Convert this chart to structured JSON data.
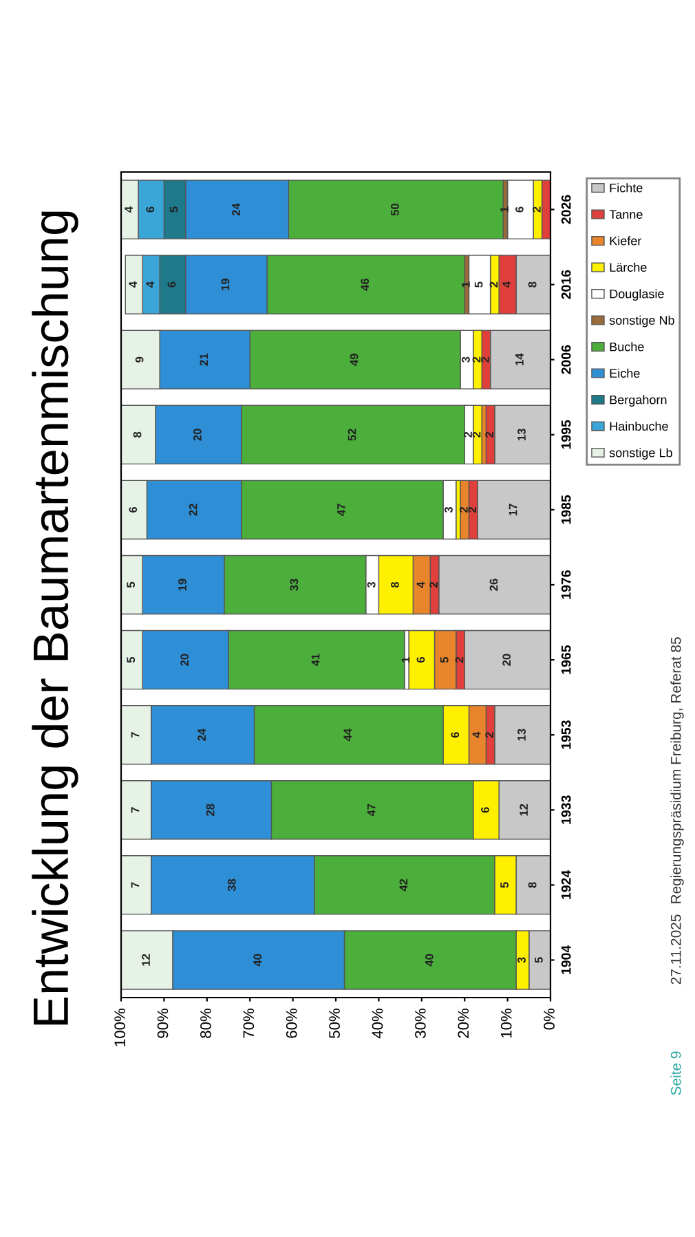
{
  "chart_data": {
    "type": "bar",
    "orientation": "horizontal",
    "stacked": true,
    "title": "Entwicklung der Baumartenmischung",
    "categories": [
      "2026",
      "2016",
      "2006",
      "1995",
      "1985",
      "1976",
      "1965",
      "1953",
      "1933",
      "1924",
      "1904"
    ],
    "xlim": [
      100,
      0
    ],
    "xticks": [
      {
        "value": 100,
        "label": "100%"
      },
      {
        "value": 90,
        "label": "90%"
      },
      {
        "value": 80,
        "label": "80%"
      },
      {
        "value": 70,
        "label": "70%"
      },
      {
        "value": 60,
        "label": "60%"
      },
      {
        "value": 50,
        "label": "50%"
      },
      {
        "value": 40,
        "label": "40%"
      },
      {
        "value": 30,
        "label": "30%"
      },
      {
        "value": 20,
        "label": "20%"
      },
      {
        "value": 10,
        "label": "10%"
      },
      {
        "value": 0,
        "label": "0%"
      }
    ],
    "grid": false,
    "legend": "right",
    "series": [
      {
        "name": "Fichte",
        "color": "#c8c8c8",
        "values": [
          null,
          8,
          14,
          13,
          17,
          26,
          20,
          13,
          12,
          8,
          5
        ],
        "value_labels": [
          null,
          "8",
          "14",
          "13",
          "17",
          "26",
          "20",
          "13",
          "12",
          "8",
          "5"
        ]
      },
      {
        "name": "Tanne",
        "color": "#e0403c",
        "values": [
          2,
          4,
          2,
          2,
          2,
          2,
          2,
          2,
          null,
          null,
          null
        ],
        "value_labels": [
          null,
          "4",
          "2",
          "2",
          "2",
          "2",
          "2",
          "2",
          null,
          null,
          null
        ]
      },
      {
        "name": "Kiefer",
        "color": "#e8842c",
        "values": [
          null,
          null,
          null,
          1,
          2,
          4,
          5,
          4,
          null,
          null,
          null
        ],
        "value_labels": [
          null,
          null,
          null,
          null,
          "2",
          "4",
          "5",
          "4",
          null,
          null,
          null
        ]
      },
      {
        "name": "Lärche",
        "color": "#fff000",
        "values": [
          2,
          2,
          2,
          2,
          1,
          8,
          6,
          6,
          6,
          5,
          3
        ],
        "value_labels": [
          "2",
          "2",
          "2",
          "2",
          null,
          "8",
          "6",
          "6",
          "6",
          "5",
          "3"
        ]
      },
      {
        "name": "Douglasie",
        "color": "#ffffff",
        "values": [
          6,
          5,
          3,
          2,
          3,
          3,
          1,
          null,
          null,
          null,
          null
        ],
        "value_labels": [
          "6",
          "5",
          "3",
          "2",
          "3",
          "3",
          "1",
          null,
          null,
          null,
          null
        ]
      },
      {
        "name": "sonstige Nb",
        "color": "#9a6a3a",
        "values": [
          1,
          1,
          null,
          null,
          null,
          null,
          null,
          null,
          null,
          null,
          null
        ],
        "value_labels": [
          "1",
          "1",
          null,
          null,
          null,
          null,
          null,
          null,
          null,
          null,
          null
        ]
      },
      {
        "name": "Buche",
        "color": "#4caf3c",
        "values": [
          50,
          46,
          49,
          52,
          47,
          33,
          41,
          44,
          47,
          42,
          40
        ],
        "value_labels": [
          "50",
          "46",
          "49",
          "52",
          "47",
          "33",
          "41",
          "44",
          "47",
          "42",
          "40"
        ]
      },
      {
        "name": "Eiche",
        "color": "#2f8fd6",
        "values": [
          24,
          19,
          21,
          20,
          22,
          19,
          20,
          24,
          28,
          38,
          40
        ],
        "value_labels": [
          "24",
          "19",
          "21",
          "20",
          "22",
          "19",
          "20",
          "24",
          "28",
          "38",
          "40"
        ]
      },
      {
        "name": "Bergahorn",
        "color": "#1e7a8a",
        "values": [
          5,
          6,
          null,
          null,
          null,
          null,
          null,
          null,
          null,
          null,
          null
        ],
        "value_labels": [
          "5",
          "6",
          null,
          null,
          null,
          null,
          null,
          null,
          null,
          null,
          null
        ]
      },
      {
        "name": "Hainbuche",
        "color": "#3aa6d8",
        "values": [
          6,
          4,
          null,
          null,
          null,
          null,
          null,
          null,
          null,
          null,
          null
        ],
        "value_labels": [
          "6",
          "4",
          null,
          null,
          null,
          null,
          null,
          null,
          null,
          null,
          null
        ]
      },
      {
        "name": "sonstige Lb",
        "color": "#e6f2e6",
        "values": [
          4,
          4,
          9,
          8,
          6,
          5,
          5,
          7,
          7,
          7,
          12
        ],
        "value_labels": [
          "4",
          "4",
          "9",
          "8",
          "6",
          "5",
          "5",
          "7",
          "7",
          "7",
          "12"
        ]
      }
    ],
    "annotations": [
      "Seite 9",
      "27.11.2025",
      "Regierungspräsidium Freiburg, Referat 85"
    ]
  }
}
